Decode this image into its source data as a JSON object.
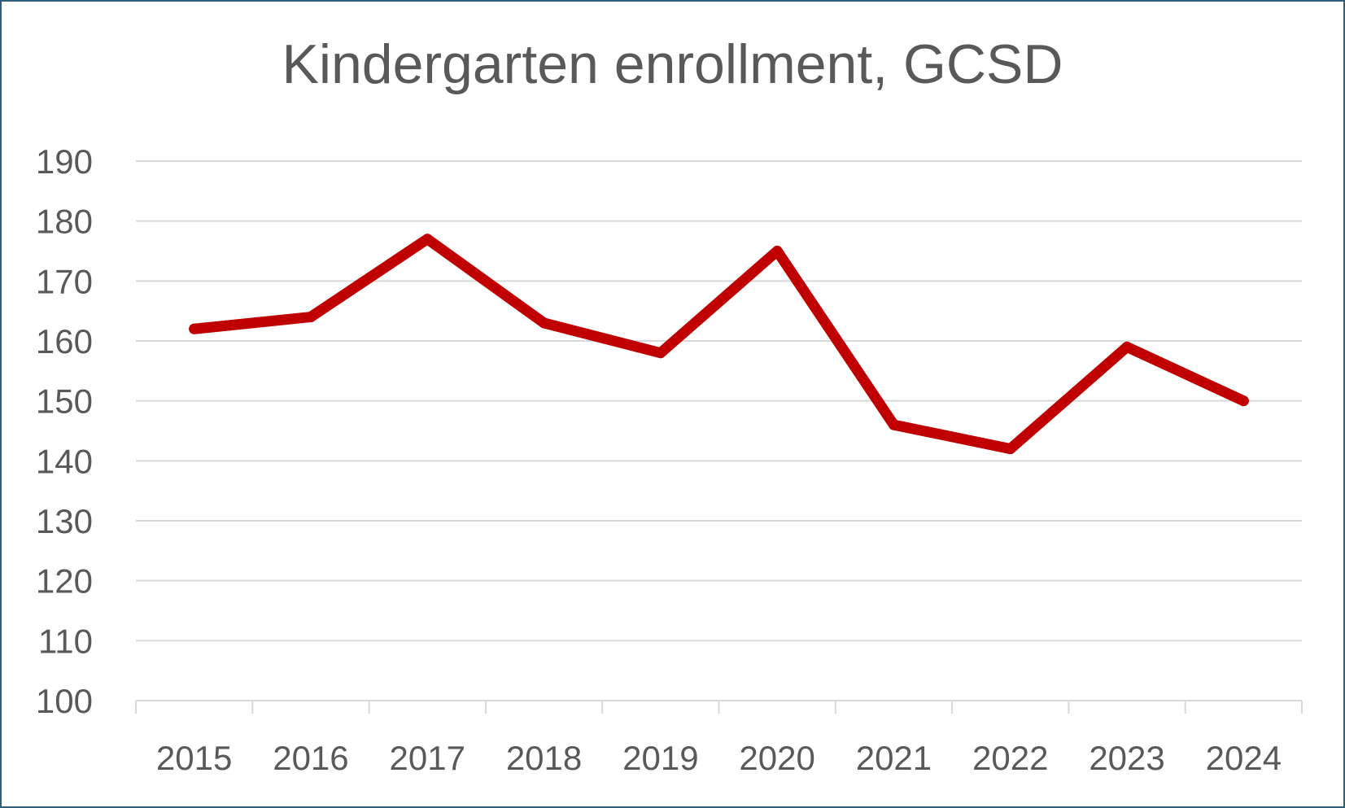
{
  "chart_data": {
    "type": "line",
    "title": "Kindergarten enrollment, GCSD",
    "xlabel": "",
    "ylabel": "",
    "categories": [
      "2015",
      "2016",
      "2017",
      "2018",
      "2019",
      "2020",
      "2021",
      "2022",
      "2023",
      "2024"
    ],
    "series": [
      {
        "values": [
          162,
          164,
          177,
          163,
          158,
          175,
          146,
          142,
          159,
          150
        ]
      }
    ],
    "ylim": [
      100,
      190
    ],
    "yticks": [
      100,
      110,
      120,
      130,
      140,
      150,
      160,
      170,
      180,
      190
    ],
    "grid": true,
    "legend": "none",
    "colors": {
      "line": "#c00000",
      "grid": "#d9d9d9",
      "axis": "#d9d9d9",
      "text": "#595959",
      "border": "#2e5f7a"
    }
  }
}
